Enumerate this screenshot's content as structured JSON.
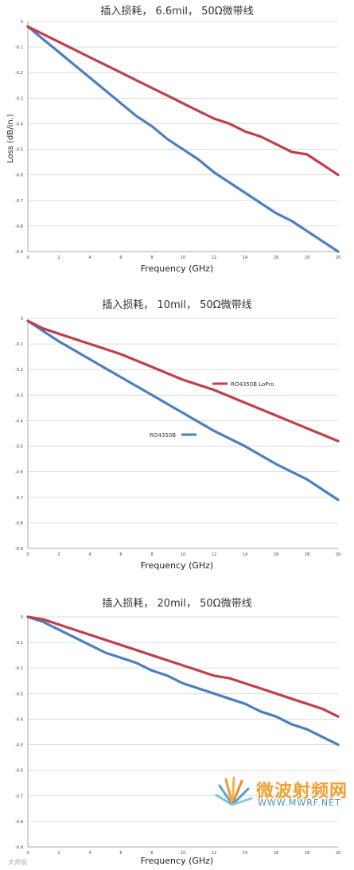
{
  "colors": {
    "red": "#c0404a",
    "blue": "#4a7fc0",
    "grid": "#d4d4d4"
  },
  "chart_data": [
    {
      "type": "line",
      "title": "插入损耗， 6.6mil， 50Ω微带线",
      "xlabel": "Frequency (GHz)",
      "ylabel": "Loss (dB/in.)",
      "xlim": [
        0,
        20
      ],
      "ylim": [
        -0.9,
        0
      ],
      "xticks": [
        "0",
        "2",
        "4",
        "6",
        "8",
        "10",
        "12",
        "14",
        "16",
        "18",
        "20"
      ],
      "yticks": [
        "0",
        "-0.1",
        "-0.2",
        "-0.3",
        "-0.4",
        "-0.5",
        "-0.6",
        "-0.7",
        "-0.8",
        "-0.9"
      ],
      "grid": true,
      "series": [
        {
          "color": "red",
          "x": [
            0,
            1,
            2,
            3,
            4,
            5,
            6,
            7,
            8,
            9,
            10,
            11,
            12,
            13,
            14,
            15,
            16,
            17,
            18,
            19,
            20
          ],
          "values": [
            -0.02,
            -0.05,
            -0.08,
            -0.11,
            -0.14,
            -0.17,
            -0.2,
            -0.23,
            -0.26,
            -0.29,
            -0.32,
            -0.35,
            -0.38,
            -0.4,
            -0.43,
            -0.45,
            -0.48,
            -0.51,
            -0.52,
            -0.56,
            -0.6
          ]
        },
        {
          "color": "blue",
          "x": [
            0,
            1,
            2,
            3,
            4,
            5,
            6,
            7,
            8,
            9,
            10,
            11,
            12,
            13,
            14,
            15,
            16,
            17,
            18,
            19,
            20
          ],
          "values": [
            -0.02,
            -0.07,
            -0.12,
            -0.17,
            -0.22,
            -0.27,
            -0.32,
            -0.37,
            -0.41,
            -0.46,
            -0.5,
            -0.54,
            -0.59,
            -0.63,
            -0.67,
            -0.71,
            -0.75,
            -0.78,
            -0.82,
            -0.86,
            -0.9
          ]
        }
      ]
    },
    {
      "type": "line",
      "title": "插入损耗， 10mil， 50Ω微带线",
      "xlabel": "Frequency (GHz)",
      "xlim": [
        0,
        20
      ],
      "ylim": [
        -0.9,
        0
      ],
      "xticks": [
        "0",
        "2",
        "4",
        "6",
        "8",
        "10",
        "12",
        "14",
        "16",
        "18",
        "20"
      ],
      "yticks": [
        "0",
        "-0.1",
        "-0.2",
        "-0.3",
        "-0.4",
        "-0.5",
        "-0.6",
        "-0.7",
        "-0.8",
        "-0.9"
      ],
      "grid": true,
      "series": [
        {
          "name": "RO4350B LoPro",
          "color": "red",
          "x": [
            0,
            1,
            2,
            4,
            6,
            8,
            10,
            12,
            14,
            16,
            18,
            20
          ],
          "values": [
            -0.01,
            -0.04,
            -0.06,
            -0.1,
            -0.14,
            -0.19,
            -0.24,
            -0.28,
            -0.33,
            -0.38,
            -0.43,
            -0.48
          ]
        },
        {
          "name": "RO4350B",
          "color": "blue",
          "x": [
            0,
            1,
            2,
            4,
            6,
            8,
            10,
            12,
            14,
            16,
            18,
            20
          ],
          "values": [
            -0.01,
            -0.05,
            -0.09,
            -0.16,
            -0.23,
            -0.3,
            -0.37,
            -0.44,
            -0.5,
            -0.57,
            -0.63,
            -0.71
          ]
        }
      ]
    },
    {
      "type": "line",
      "title": "插入损耗， 20mil， 50Ω微带线",
      "xlabel": "Frequency (GHz)",
      "xlim": [
        0,
        20
      ],
      "ylim": [
        -0.9,
        0
      ],
      "xticks": [
        "0",
        "2",
        "4",
        "6",
        "8",
        "10",
        "12",
        "14",
        "16",
        "18",
        "20"
      ],
      "yticks": [
        "0",
        "-0.1",
        "-0.2",
        "-0.3",
        "-0.4",
        "-0.5",
        "-0.6",
        "-0.7",
        "-0.8",
        "-0.9"
      ],
      "grid": true,
      "series": [
        {
          "color": "red",
          "x": [
            0,
            1,
            2,
            3,
            4,
            5,
            6,
            7,
            8,
            9,
            10,
            11,
            12,
            13,
            14,
            15,
            16,
            17,
            18,
            19,
            20
          ],
          "values": [
            0,
            -0.01,
            -0.03,
            -0.05,
            -0.07,
            -0.09,
            -0.11,
            -0.13,
            -0.15,
            -0.17,
            -0.19,
            -0.21,
            -0.23,
            -0.24,
            -0.26,
            -0.28,
            -0.3,
            -0.32,
            -0.34,
            -0.36,
            -0.39
          ]
        },
        {
          "color": "blue",
          "x": [
            0,
            1,
            2,
            3,
            4,
            5,
            6,
            7,
            8,
            9,
            10,
            11,
            12,
            13,
            14,
            15,
            16,
            17,
            18,
            19,
            20
          ],
          "values": [
            0,
            -0.02,
            -0.05,
            -0.08,
            -0.11,
            -0.14,
            -0.16,
            -0.18,
            -0.21,
            -0.23,
            -0.26,
            -0.28,
            -0.3,
            -0.32,
            -0.34,
            -0.37,
            -0.39,
            -0.42,
            -0.44,
            -0.47,
            -0.5
          ]
        }
      ]
    }
  ],
  "watermark": {
    "cn": "微波射频网",
    "url": "WWW.MWRF.NET",
    "corner": "大师说"
  }
}
